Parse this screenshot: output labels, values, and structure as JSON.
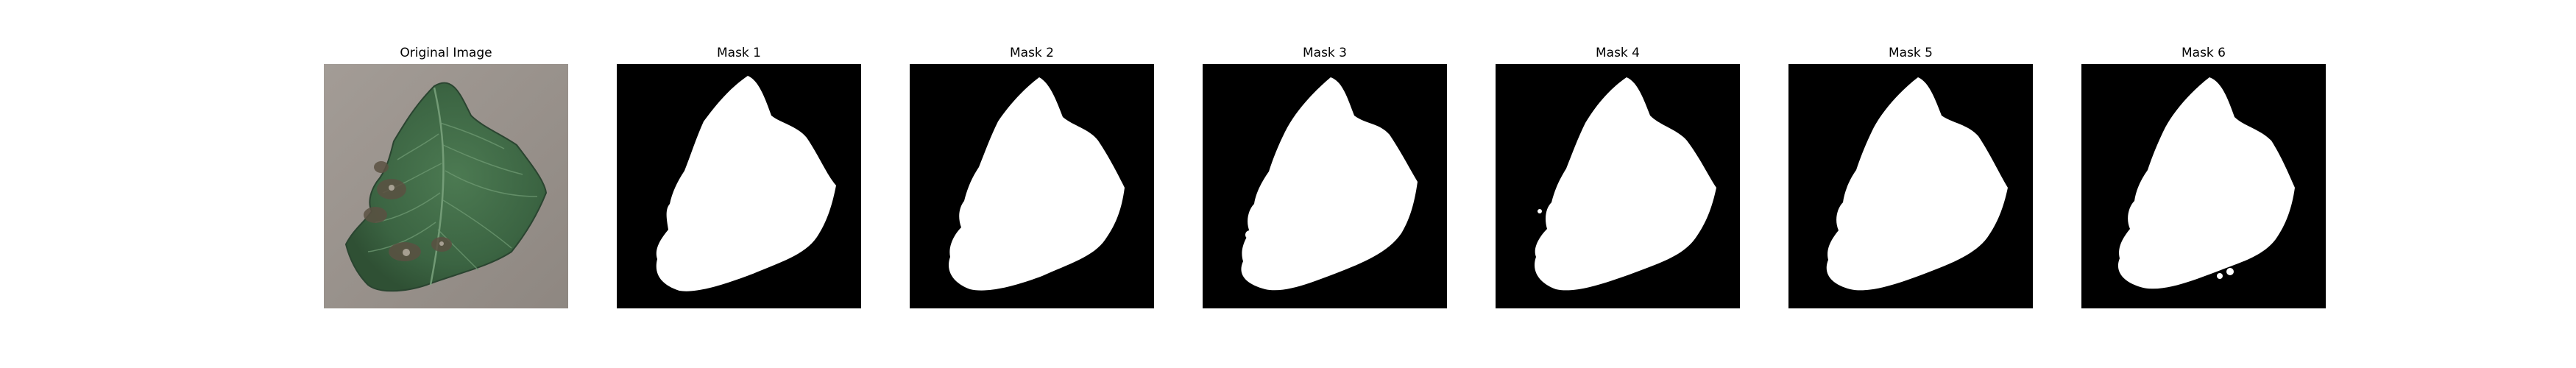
{
  "panels": [
    {
      "title": "Original Image",
      "kind": "photo"
    },
    {
      "title": "Mask 1",
      "kind": "mask"
    },
    {
      "title": "Mask 2",
      "kind": "mask"
    },
    {
      "title": "Mask 3",
      "kind": "mask"
    },
    {
      "title": "Mask 4",
      "kind": "mask"
    },
    {
      "title": "Mask 5",
      "kind": "mask"
    },
    {
      "title": "Mask 6",
      "kind": "mask"
    }
  ],
  "colors": {
    "page_background": "#ffffff",
    "mask_background": "#000000",
    "mask_foreground": "#ffffff",
    "photo_background": "#9b938d",
    "leaf_green": "#3f6b45",
    "leaf_dark": "#2b4b30",
    "leaf_damage": "#5a4f3e"
  }
}
